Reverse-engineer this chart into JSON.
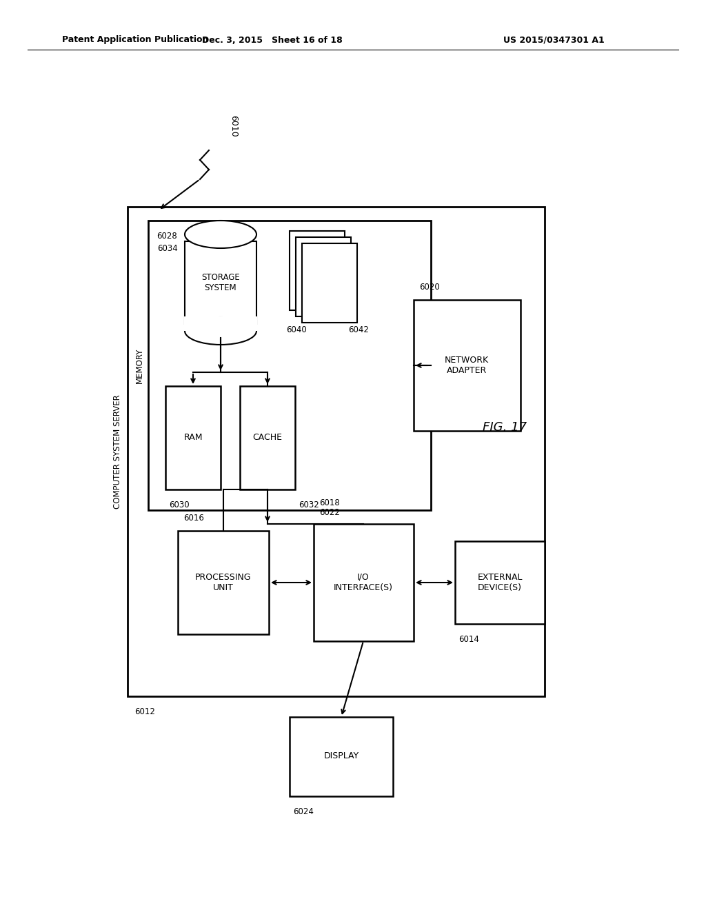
{
  "bg_color": "#ffffff",
  "header_left": "Patent Application Publication",
  "header_mid": "Dec. 3, 2015   Sheet 16 of 18",
  "header_right": "US 2015/0347301 A1",
  "fig_label": "FIG. 17",
  "labels": {
    "outer": "COMPUTER SYSTEM SERVER",
    "outer_id": "6012",
    "memory": "MEMORY",
    "memory_id": "6028",
    "storage": "STORAGE\nSYSTEM",
    "storage_id": "6034",
    "ram": "RAM",
    "ram_id": "6030",
    "cache": "CACHE",
    "cache_id": "6032",
    "network": "NETWORK\nADAPTER",
    "network_id": "6020",
    "proc": "PROCESSING\nUNIT",
    "proc_id": "6016",
    "io": "I/O\nINTERFACE(S)",
    "io_id1": "6018",
    "io_id2": "6022",
    "external": "EXTERNAL\nDEVICE(S)",
    "external_id": "6014",
    "display": "DISPLAY",
    "display_id": "6024",
    "ref_id": "6010",
    "pages_id1": "6040",
    "pages_id2": "6042"
  }
}
